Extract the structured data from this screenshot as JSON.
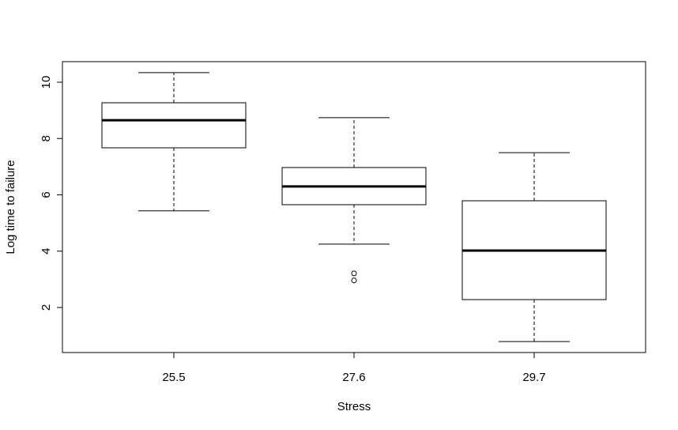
{
  "chart_data": {
    "type": "box",
    "x_label": "Stress",
    "y_label": "Log time to failure",
    "categories": [
      "25.5",
      "27.6",
      "29.7"
    ],
    "boxes": [
      {
        "min": 5.43,
        "q1": 7.67,
        "median": 8.65,
        "q3": 9.27,
        "max": 10.34
      },
      {
        "min": 4.25,
        "q1": 5.65,
        "median": 6.3,
        "q3": 6.97,
        "max": 8.74,
        "outliers": [
          3.21,
          2.96
        ]
      },
      {
        "min": 0.79,
        "q1": 2.28,
        "median": 4.02,
        "q3": 5.79,
        "max": 7.5
      }
    ],
    "color": "#000000",
    "ylim": [
      0.4,
      10.73
    ],
    "yticks": [
      2,
      4,
      6,
      8,
      10
    ]
  }
}
